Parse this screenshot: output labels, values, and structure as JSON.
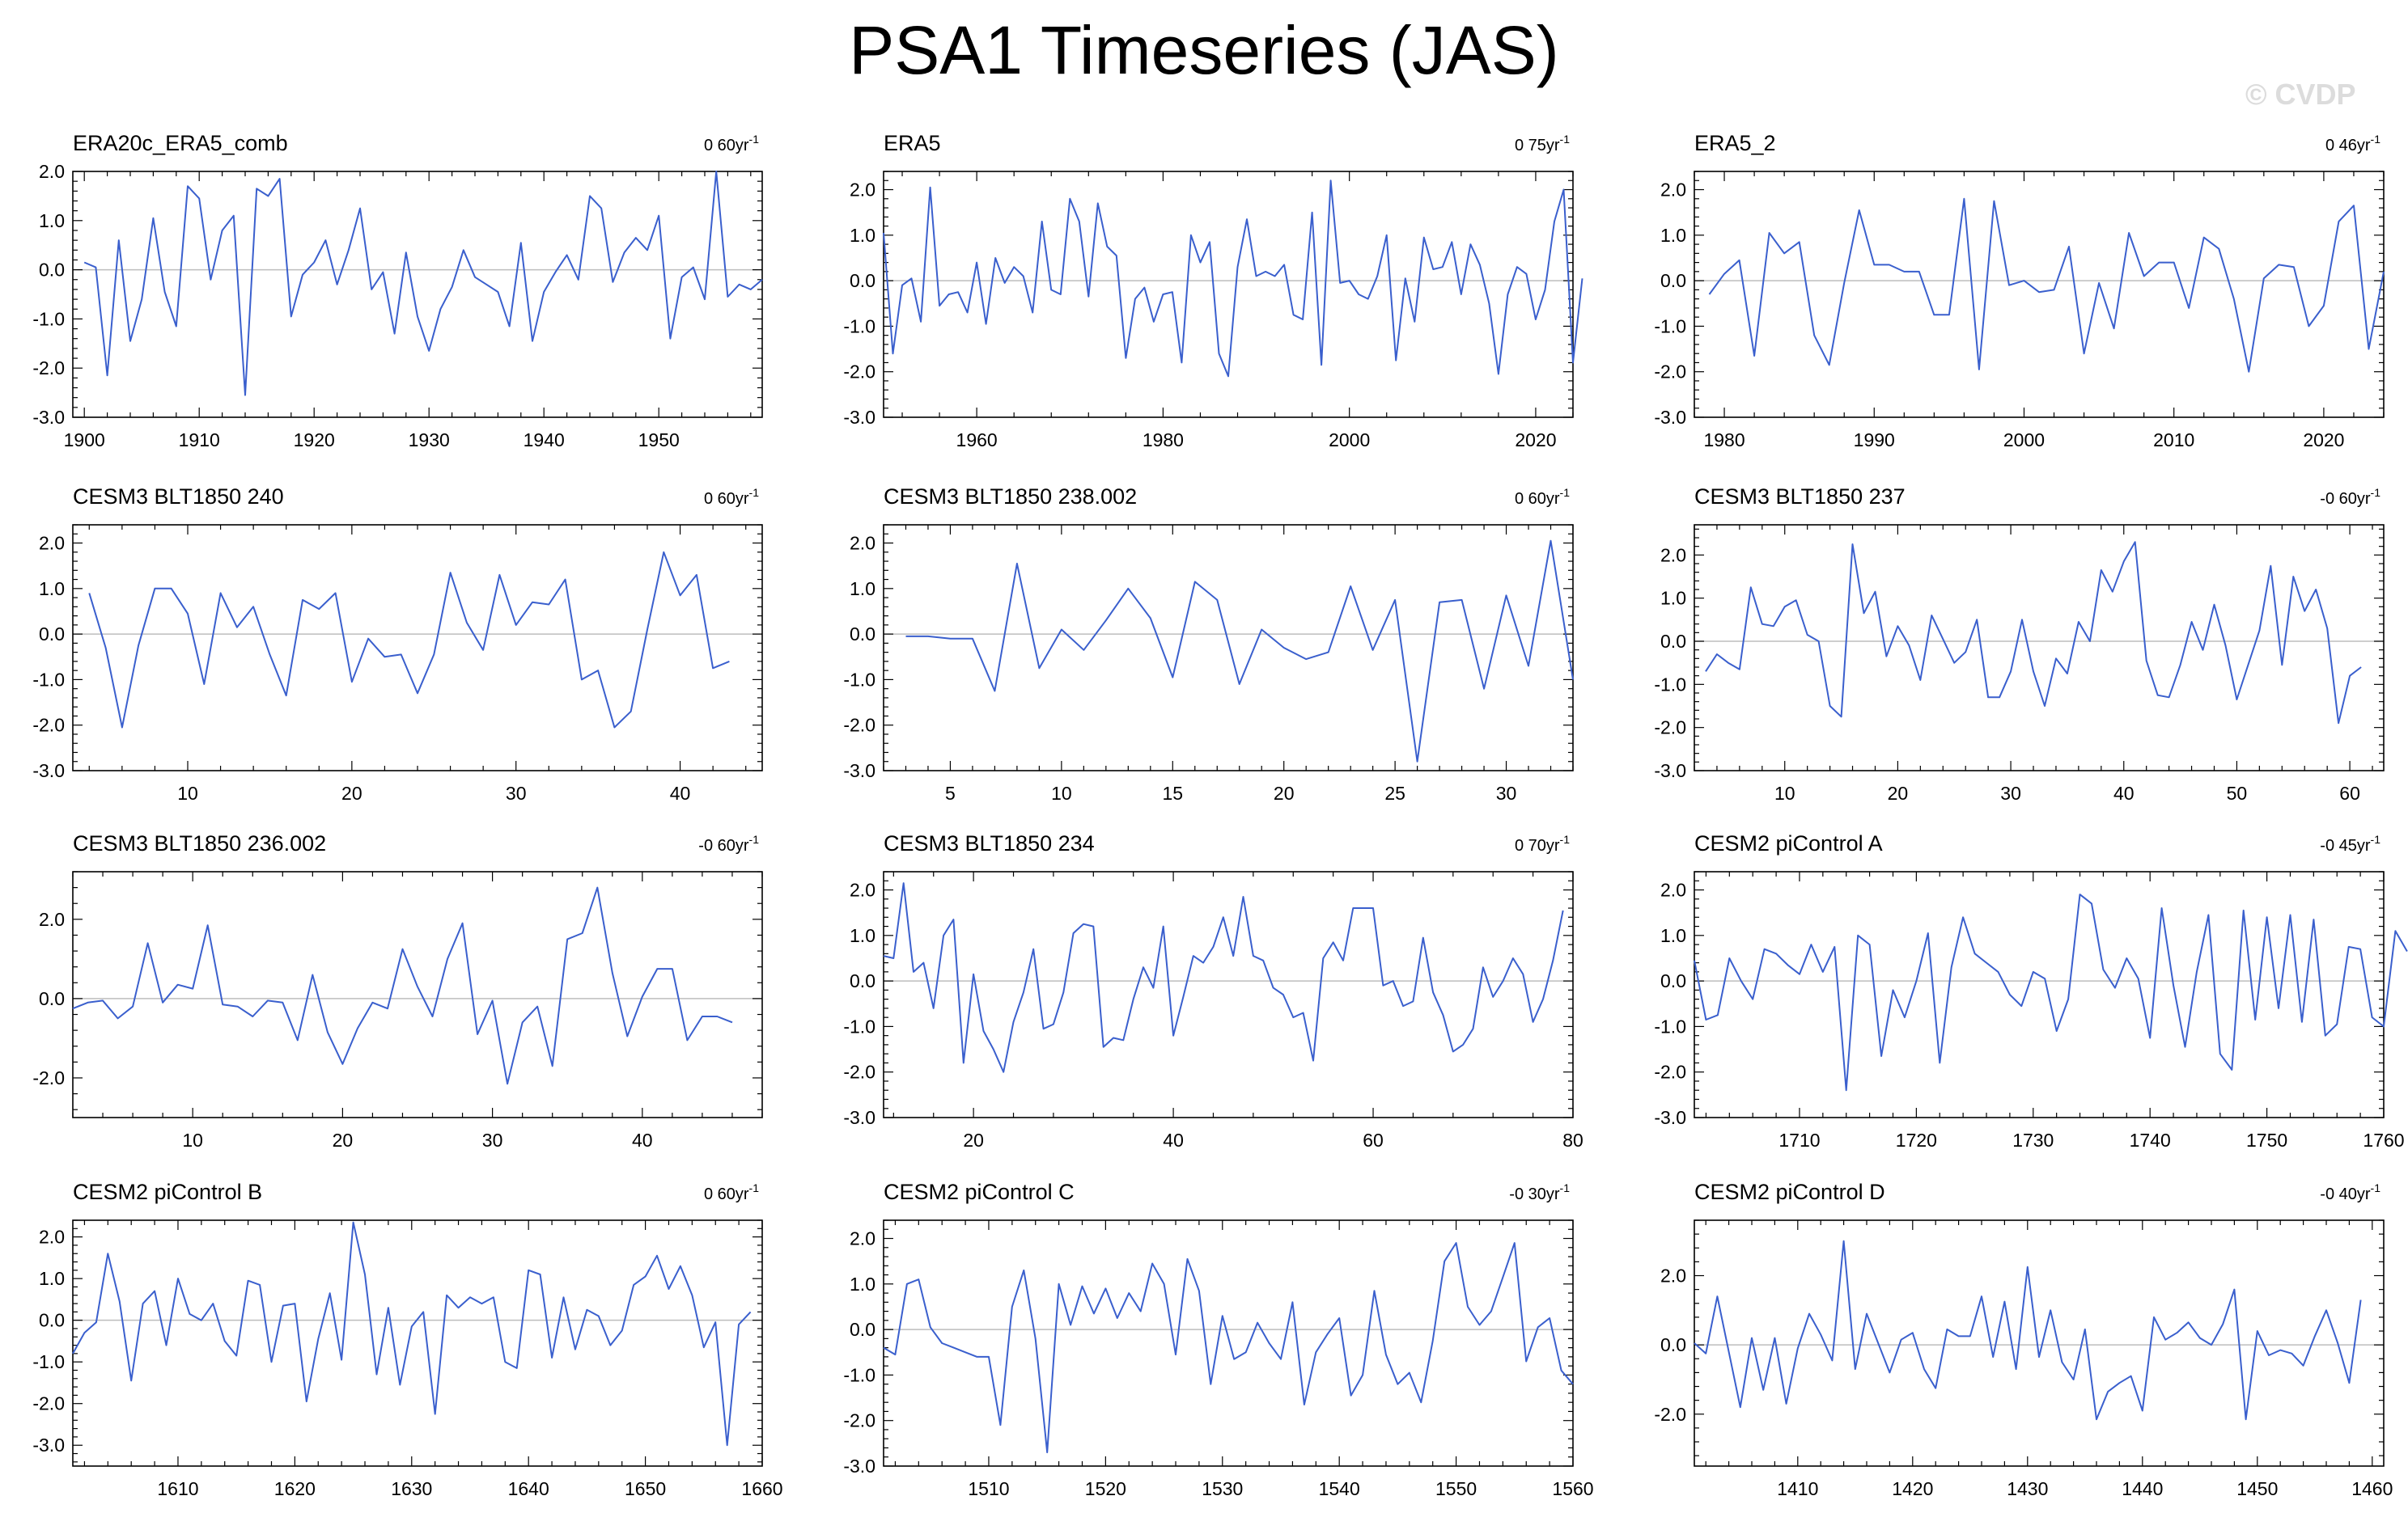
{
  "title": "PSA1 Timeseries (JAS)",
  "watermark": "© CVDP",
  "colors": {
    "line": "#3a5fcd",
    "zero_line": "#bdbdbd",
    "axis": "#000000"
  },
  "chart_data": [
    {
      "type": "line",
      "title": "ERA20c_ERA5_comb",
      "trend": "0 60yr",
      "trend_unit_exp": "-1",
      "xlim": [
        1899,
        1959
      ],
      "ylim": [
        -3,
        2
      ],
      "xticks": [
        1900,
        1910,
        1920,
        1930,
        1940,
        1950
      ],
      "yticks": [
        "-3.0",
        "-2.0",
        "-1.0",
        "0.0",
        "1.0",
        "2.0"
      ],
      "x_start": 1900,
      "values": [
        0.15,
        0.05,
        -2.15,
        0.6,
        -1.45,
        -0.6,
        1.05,
        -0.45,
        -1.15,
        1.7,
        1.45,
        -0.2,
        0.8,
        1.1,
        -2.55,
        1.65,
        1.5,
        1.85,
        -0.95,
        -0.1,
        0.15,
        0.6,
        -0.3,
        0.4,
        1.25,
        -0.4,
        -0.05,
        -1.3,
        0.35,
        -0.95,
        -1.65,
        -0.8,
        -0.35,
        0.4,
        -0.15,
        -0.3,
        -0.45,
        -1.15,
        0.55,
        -1.45,
        -0.45,
        -0.05,
        0.3,
        -0.2,
        1.5,
        1.25,
        -0.25,
        0.35,
        0.65,
        0.4,
        1.1,
        -1.4,
        -0.15,
        0.05,
        -0.6,
        2.0,
        -0.55,
        -0.3,
        -0.4,
        -0.2
      ]
    },
    {
      "type": "line",
      "title": "ERA5",
      "trend": "0 75yr",
      "trend_unit_exp": "-1",
      "xlim": [
        1950,
        2024
      ],
      "ylim": [
        -3,
        2.4
      ],
      "xticks": [
        1960,
        1980,
        2000,
        2020
      ],
      "yticks": [
        "-3.0",
        "-2.0",
        "-1.0",
        "0.0",
        "1.0",
        "2.0"
      ],
      "x_start": 1950,
      "values": [
        1.05,
        -1.6,
        -0.1,
        0.05,
        -0.9,
        2.05,
        -0.55,
        -0.3,
        -0.25,
        -0.7,
        0.4,
        -0.95,
        0.5,
        -0.05,
        0.3,
        0.1,
        -0.7,
        1.3,
        -0.2,
        -0.3,
        1.8,
        1.3,
        -0.35,
        1.7,
        0.75,
        0.55,
        -1.7,
        -0.4,
        -0.15,
        -0.9,
        -0.3,
        -0.25,
        -1.8,
        1.0,
        0.4,
        0.85,
        -1.6,
        -2.1,
        0.3,
        1.35,
        0.1,
        0.2,
        0.1,
        0.35,
        -0.75,
        -0.85,
        1.5,
        -1.85,
        2.2,
        -0.05,
        0.0,
        -0.3,
        -0.4,
        0.1,
        1.0,
        -1.75,
        0.05,
        -0.9,
        0.95,
        0.25,
        0.3,
        0.85,
        -0.3,
        0.8,
        0.35,
        -0.5,
        -2.05,
        -0.3,
        0.3,
        0.15,
        -0.85,
        -0.2,
        1.3,
        2.0,
        -1.8,
        0.05
      ]
    },
    {
      "type": "line",
      "title": "ERA5_2",
      "trend": "0 46yr",
      "trend_unit_exp": "-1",
      "xlim": [
        1978,
        2024
      ],
      "ylim": [
        -3,
        2.4
      ],
      "xticks": [
        1980,
        1990,
        2000,
        2010,
        2020
      ],
      "yticks": [
        "-3.0",
        "-2.0",
        "-1.0",
        "0.0",
        "1.0",
        "2.0"
      ],
      "x_start": 1979,
      "values": [
        -0.3,
        0.15,
        0.45,
        -1.65,
        1.05,
        0.6,
        0.85,
        -1.2,
        -1.85,
        -0.05,
        1.55,
        0.35,
        0.35,
        0.2,
        0.2,
        -0.75,
        -0.75,
        1.8,
        -1.95,
        1.75,
        -0.1,
        0.0,
        -0.25,
        -0.2,
        0.75,
        -1.6,
        -0.05,
        -1.05,
        1.05,
        0.1,
        0.4,
        0.4,
        -0.6,
        0.95,
        0.7,
        -0.4,
        -2.0,
        0.05,
        0.35,
        0.3,
        -1.0,
        -0.55,
        1.3,
        1.65,
        -1.5,
        0.2
      ]
    },
    {
      "type": "line",
      "title": "CESM3 BLT1850 240",
      "trend": "0 60yr",
      "trend_unit_exp": "-1",
      "xlim": [
        3,
        45
      ],
      "ylim": [
        -3,
        2.4
      ],
      "xticks": [
        10,
        20,
        30,
        40
      ],
      "yticks": [
        "-3.0",
        "-2.0",
        "-1.0",
        "0.0",
        "1.0",
        "2.0"
      ],
      "x_start": 4,
      "values": [
        0.9,
        -0.3,
        -2.05,
        -0.25,
        1.0,
        1.0,
        0.45,
        -1.1,
        0.9,
        0.15,
        0.6,
        -0.45,
        -1.35,
        0.75,
        0.55,
        0.9,
        -1.05,
        -0.1,
        -0.5,
        -0.45,
        -1.3,
        -0.45,
        1.35,
        0.25,
        -0.35,
        1.3,
        0.2,
        0.7,
        0.65,
        1.2,
        -1.0,
        -0.8,
        -2.05,
        -1.7,
        0.1,
        1.8,
        0.85,
        1.3,
        -0.75,
        -0.6
      ]
    },
    {
      "type": "line",
      "title": "CESM3 BLT1850 238.002",
      "trend": "0 60yr",
      "trend_unit_exp": "-1",
      "xlim": [
        2,
        33
      ],
      "ylim": [
        -3,
        2.4
      ],
      "xticks": [
        5,
        10,
        15,
        20,
        25,
        30
      ],
      "yticks": [
        "-3.0",
        "-2.0",
        "-1.0",
        "0.0",
        "1.0",
        "2.0"
      ],
      "x_start": 3,
      "values": [
        -0.05,
        -0.05,
        -0.1,
        -0.1,
        -1.25,
        1.55,
        -0.75,
        0.1,
        -0.35,
        0.3,
        1.0,
        0.35,
        -0.95,
        1.15,
        0.75,
        -1.1,
        0.1,
        -0.3,
        -0.55,
        -0.4,
        1.05,
        -0.35,
        0.75,
        -2.8,
        0.7,
        0.75,
        -1.2,
        0.85,
        -0.7,
        2.05,
        -1.0
      ]
    },
    {
      "type": "line",
      "title": "CESM3 BLT1850 237",
      "trend": "-0 60yr",
      "trend_unit_exp": "-1",
      "xlim": [
        2,
        63
      ],
      "ylim": [
        -3,
        2.7
      ],
      "xticks": [
        10,
        20,
        30,
        40,
        50,
        60
      ],
      "yticks": [
        "-3.0",
        "-2.0",
        "-1.0",
        "0.0",
        "1.0",
        "2.0"
      ],
      "x_start": 3,
      "values": [
        -0.7,
        -0.3,
        -0.5,
        -0.65,
        1.25,
        0.4,
        0.35,
        0.8,
        0.95,
        0.15,
        0.0,
        -1.5,
        -1.75,
        2.25,
        0.65,
        1.15,
        -0.35,
        0.35,
        -0.1,
        -0.9,
        0.6,
        0.05,
        -0.5,
        -0.25,
        0.5,
        -1.3,
        -1.3,
        -0.7,
        0.5,
        -0.7,
        -1.5,
        -0.4,
        -0.75,
        0.45,
        0.0,
        1.65,
        1.15,
        1.85,
        2.3,
        -0.45,
        -1.25,
        -1.3,
        -0.55,
        0.45,
        -0.2,
        0.85,
        -0.1,
        -1.35,
        -0.55,
        0.25,
        1.75,
        -0.55,
        1.5,
        0.7,
        1.2,
        0.3,
        -1.9,
        -0.8,
        -0.6
      ]
    },
    {
      "type": "line",
      "title": "CESM3 BLT1850 236.002",
      "trend": "-0 60yr",
      "trend_unit_exp": "-1",
      "xlim": [
        2,
        48
      ],
      "ylim": [
        -3,
        3.2
      ],
      "xticks": [
        10,
        20,
        30,
        40
      ],
      "yticks": [
        "-2.0",
        "0.0",
        "2.0"
      ],
      "x_start": 2,
      "values": [
        -0.25,
        -0.1,
        -0.05,
        -0.5,
        -0.2,
        1.4,
        -0.1,
        0.35,
        0.25,
        1.85,
        -0.15,
        -0.2,
        -0.45,
        -0.05,
        -0.1,
        -1.05,
        0.6,
        -0.85,
        -1.65,
        -0.75,
        -0.1,
        -0.25,
        1.25,
        0.3,
        -0.45,
        1.0,
        1.9,
        -0.9,
        -0.05,
        -2.15,
        -0.6,
        -0.2,
        -1.7,
        1.5,
        1.65,
        2.8,
        0.65,
        -0.95,
        0.05,
        0.75,
        0.75,
        -1.05,
        -0.45,
        -0.45,
        -0.6
      ]
    },
    {
      "type": "line",
      "title": "CESM3 BLT1850 234",
      "trend": "0 70yr",
      "trend_unit_exp": "-1",
      "xlim": [
        11,
        80
      ],
      "ylim": [
        -3,
        2.4
      ],
      "xticks": [
        20,
        40,
        60,
        80
      ],
      "yticks": [
        "-3.0",
        "-2.0",
        "-1.0",
        "0.0",
        "1.0",
        "2.0"
      ],
      "x_start": 11,
      "values": [
        0.55,
        0.5,
        2.15,
        0.2,
        0.4,
        -0.6,
        1.0,
        1.35,
        -1.8,
        0.15,
        -1.1,
        -1.5,
        -2.0,
        -0.9,
        -0.25,
        0.7,
        -1.05,
        -0.95,
        -0.25,
        1.05,
        1.25,
        1.2,
        -1.45,
        -1.25,
        -1.3,
        -0.4,
        0.3,
        -0.15,
        1.2,
        -1.2,
        -0.35,
        0.55,
        0.4,
        0.75,
        1.4,
        0.55,
        1.85,
        0.55,
        0.45,
        -0.15,
        -0.3,
        -0.8,
        -0.7,
        -1.75,
        0.5,
        0.85,
        0.45,
        1.6,
        1.6,
        1.6,
        -0.1,
        0.0,
        -0.55,
        -0.45,
        0.95,
        -0.25,
        -0.75,
        -1.55,
        -1.4,
        -1.05,
        0.3,
        -0.35,
        0.0,
        0.5,
        0.15,
        -0.9,
        -0.4,
        0.45,
        1.55
      ]
    },
    {
      "type": "line",
      "title": "CESM2 piControl A",
      "trend": "-0 45yr",
      "trend_unit_exp": "-1",
      "xlim": [
        1701,
        1760
      ],
      "ylim": [
        -3,
        2.4
      ],
      "xticks": [
        1710,
        1720,
        1730,
        1740,
        1750,
        1760
      ],
      "yticks": [
        "-3.0",
        "-2.0",
        "-1.0",
        "0.0",
        "1.0",
        "2.0"
      ],
      "x_start": 1701,
      "values": [
        0.45,
        -0.85,
        -0.75,
        0.5,
        0.0,
        -0.4,
        0.7,
        0.6,
        0.35,
        0.15,
        0.8,
        0.2,
        0.75,
        -2.4,
        1.0,
        0.8,
        -1.65,
        -0.2,
        -0.8,
        0.0,
        1.05,
        -1.8,
        0.3,
        1.4,
        0.6,
        0.4,
        0.2,
        -0.3,
        -0.55,
        0.2,
        0.05,
        -1.1,
        -0.4,
        1.9,
        1.7,
        0.25,
        -0.15,
        0.5,
        0.05,
        -1.25,
        1.6,
        -0.1,
        -1.45,
        0.2,
        1.45,
        -1.6,
        -1.95,
        1.55,
        -0.85,
        1.4,
        -0.6,
        1.45,
        -0.9,
        1.35,
        -1.2,
        -0.95,
        0.75,
        0.7,
        -0.8,
        -1.0,
        1.1,
        0.65
      ]
    },
    {
      "type": "line",
      "title": "CESM2 piControl B",
      "trend": "0 60yr",
      "trend_unit_exp": "-1",
      "xlim": [
        1601,
        1660
      ],
      "ylim": [
        -3.5,
        2.4
      ],
      "xticks": [
        1610,
        1620,
        1630,
        1640,
        1650,
        1660
      ],
      "yticks": [
        "-3.0",
        "-2.0",
        "-1.0",
        "0.0",
        "1.0",
        "2.0"
      ],
      "x_start": 1601,
      "values": [
        -0.8,
        -0.3,
        -0.05,
        1.6,
        0.45,
        -1.45,
        0.4,
        0.7,
        -0.6,
        1.0,
        0.15,
        0.0,
        0.4,
        -0.5,
        -0.85,
        0.95,
        0.85,
        -1.0,
        0.35,
        0.4,
        -1.95,
        -0.45,
        0.65,
        -0.95,
        2.35,
        1.1,
        -1.3,
        0.3,
        -1.55,
        -0.15,
        0.2,
        -2.25,
        0.6,
        0.3,
        0.55,
        0.4,
        0.55,
        -1.0,
        -1.15,
        1.2,
        1.1,
        -0.9,
        0.55,
        -0.7,
        0.25,
        0.1,
        -0.6,
        -0.25,
        0.85,
        1.05,
        1.55,
        0.75,
        1.3,
        0.6,
        -0.65,
        -0.05,
        -3.0,
        -0.1,
        0.2
      ]
    },
    {
      "type": "line",
      "title": "CESM2 piControl C",
      "trend": "-0 30yr",
      "trend_unit_exp": "-1",
      "xlim": [
        1501,
        1560
      ],
      "ylim": [
        -3,
        2.4
      ],
      "xticks": [
        1510,
        1520,
        1530,
        1540,
        1550,
        1560
      ],
      "yticks": [
        "-3.0",
        "-2.0",
        "-1.0",
        "0.0",
        "1.0",
        "2.0"
      ],
      "x_start": 1501,
      "values": [
        -0.4,
        -0.55,
        1.0,
        1.1,
        0.05,
        -0.3,
        -0.4,
        -0.5,
        -0.6,
        -0.6,
        -2.1,
        0.5,
        1.3,
        -0.2,
        -2.7,
        1.0,
        0.1,
        0.95,
        0.35,
        0.9,
        0.25,
        0.8,
        0.4,
        1.45,
        1.0,
        -0.55,
        1.55,
        0.85,
        -1.2,
        0.3,
        -0.65,
        -0.5,
        0.15,
        -0.3,
        -0.65,
        0.6,
        -1.65,
        -0.5,
        -0.1,
        0.25,
        -1.45,
        -1.0,
        0.85,
        -0.55,
        -1.2,
        -0.95,
        -1.6,
        -0.25,
        1.5,
        1.9,
        0.5,
        0.1,
        0.4,
        1.15,
        1.9,
        -0.7,
        0.05,
        0.25,
        -0.9,
        -1.2
      ]
    },
    {
      "type": "line",
      "title": "CESM2 piControl D",
      "trend": "-0 40yr",
      "trend_unit_exp": "-1",
      "xlim": [
        1401,
        1461
      ],
      "ylim": [
        -3.5,
        3.6
      ],
      "xticks": [
        1410,
        1420,
        1430,
        1440,
        1450,
        1460
      ],
      "yticks": [
        "-2.0",
        "0.0",
        "2.0"
      ],
      "x_start": 1401,
      "values": [
        0.05,
        -0.25,
        1.4,
        -0.2,
        -1.8,
        0.2,
        -1.3,
        0.2,
        -1.7,
        -0.1,
        0.9,
        0.3,
        -0.45,
        3.0,
        -0.7,
        0.9,
        0.05,
        -0.8,
        0.15,
        0.35,
        -0.7,
        -1.25,
        0.45,
        0.25,
        0.25,
        1.4,
        -0.35,
        1.25,
        -0.7,
        2.25,
        -0.35,
        1.0,
        -0.5,
        -1.0,
        0.45,
        -2.15,
        -1.35,
        -1.1,
        -0.9,
        -1.9,
        0.8,
        0.15,
        0.35,
        0.65,
        0.2,
        0.0,
        0.6,
        1.6,
        -2.15,
        0.4,
        -0.3,
        -0.15,
        -0.25,
        -0.6,
        0.25,
        1.0,
        0.05,
        -1.1,
        1.3
      ]
    }
  ]
}
